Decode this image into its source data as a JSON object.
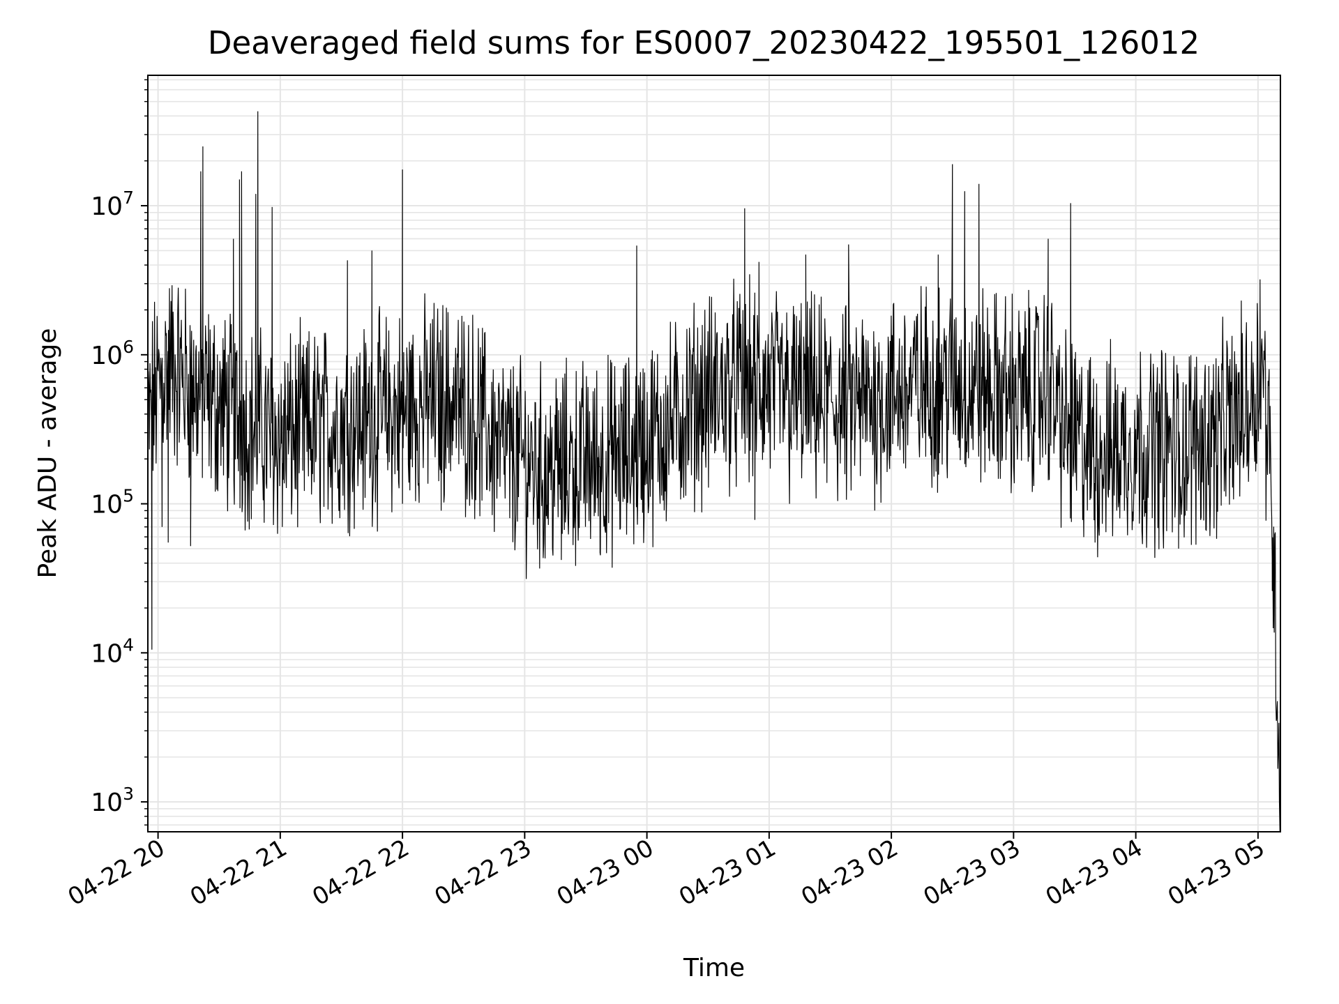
{
  "chart_data": {
    "type": "line",
    "title": "Deaveraged field sums for ES0007_20230422_195501_126012",
    "xlabel": "Time",
    "ylabel": "Peak ADU - average",
    "y_scale": "log",
    "ylim": [
      630,
      75000000
    ],
    "xlim": [
      "2023-04-22 19:55",
      "2023-04-23 05:11"
    ],
    "grid": "on (major and minor)",
    "legend": "none",
    "line_color": "#000000",
    "grid_color": "#e5e5e5",
    "x_ticks": [
      {
        "value": "2023-04-22 20:00",
        "label": "04-22 20"
      },
      {
        "value": "2023-04-22 21:00",
        "label": "04-22 21"
      },
      {
        "value": "2023-04-22 22:00",
        "label": "04-22 22"
      },
      {
        "value": "2023-04-22 23:00",
        "label": "04-22 23"
      },
      {
        "value": "2023-04-23 00:00",
        "label": "04-23 00"
      },
      {
        "value": "2023-04-23 01:00",
        "label": "04-23 01"
      },
      {
        "value": "2023-04-23 02:00",
        "label": "04-23 02"
      },
      {
        "value": "2023-04-23 03:00",
        "label": "04-23 03"
      },
      {
        "value": "2023-04-23 04:00",
        "label": "04-23 04"
      },
      {
        "value": "2023-04-23 05:00",
        "label": "04-23 05"
      }
    ],
    "y_ticks": [
      {
        "value": 1000,
        "base": "10",
        "exp": "3"
      },
      {
        "value": 10000,
        "base": "10",
        "exp": "4"
      },
      {
        "value": 100000,
        "base": "10",
        "exp": "5"
      },
      {
        "value": 1000000,
        "base": "10",
        "exp": "6"
      },
      {
        "value": 10000000,
        "base": "10",
        "exp": "7"
      }
    ],
    "series": [
      {
        "trend": [
          [
            "2023-04-22 19:55",
            300000
          ],
          [
            "2023-04-22 19:58",
            500000
          ],
          [
            "2023-04-22 20:05",
            900000
          ],
          [
            "2023-04-22 20:12",
            700000
          ],
          [
            "2023-04-22 20:20",
            550000
          ],
          [
            "2023-04-22 20:30",
            450000
          ],
          [
            "2023-04-22 20:45",
            330000
          ],
          [
            "2023-04-22 21:00",
            280000
          ],
          [
            "2023-04-22 21:20",
            330000
          ],
          [
            "2023-04-22 21:40",
            350000
          ],
          [
            "2023-04-22 22:00",
            420000
          ],
          [
            "2023-04-22 22:20",
            520000
          ],
          [
            "2023-04-22 22:35",
            400000
          ],
          [
            "2023-04-22 22:50",
            220000
          ],
          [
            "2023-04-22 23:10",
            170000
          ],
          [
            "2023-04-22 23:30",
            190000
          ],
          [
            "2023-04-22 23:50",
            210000
          ],
          [
            "2023-04-23 00:10",
            320000
          ],
          [
            "2023-04-23 00:25",
            500000
          ],
          [
            "2023-04-23 00:45",
            620000
          ],
          [
            "2023-04-23 01:00",
            580000
          ],
          [
            "2023-04-23 01:15",
            520000
          ],
          [
            "2023-04-23 01:35",
            450000
          ],
          [
            "2023-04-23 01:50",
            480000
          ],
          [
            "2023-04-23 02:10",
            600000
          ],
          [
            "2023-04-23 02:30",
            650000
          ],
          [
            "2023-04-23 02:50",
            560000
          ],
          [
            "2023-04-23 03:05",
            520000
          ],
          [
            "2023-04-23 03:18",
            620000
          ],
          [
            "2023-04-23 03:25",
            300000
          ],
          [
            "2023-04-23 03:40",
            220000
          ],
          [
            "2023-04-23 04:00",
            250000
          ],
          [
            "2023-04-23 04:20",
            240000
          ],
          [
            "2023-04-23 04:40",
            280000
          ],
          [
            "2023-04-23 04:57",
            500000
          ],
          [
            "2023-04-23 05:02",
            900000
          ],
          [
            "2023-04-23 05:05",
            300000
          ],
          [
            "2023-04-23 05:07",
            100000
          ],
          [
            "2023-04-23 05:09",
            10000
          ],
          [
            "2023-04-23 05:11",
            1000
          ]
        ],
        "peaks": [
          [
            "2023-04-22 19:57",
            10500
          ],
          [
            "2023-04-22 20:02",
            70000
          ],
          [
            "2023-04-22 20:05",
            55000
          ],
          [
            "2023-04-22 20:16",
            52000
          ],
          [
            "2023-04-22 20:21",
            17000000
          ],
          [
            "2023-04-22 20:22",
            25000000
          ],
          [
            "2023-04-22 20:37",
            6000000
          ],
          [
            "2023-04-22 20:40",
            15000000
          ],
          [
            "2023-04-22 20:41",
            17000000
          ],
          [
            "2023-04-22 20:48",
            12000000
          ],
          [
            "2023-04-22 20:49",
            43000000
          ],
          [
            "2023-04-22 20:56",
            9800000
          ],
          [
            "2023-04-22 21:01",
            70000
          ],
          [
            "2023-04-22 21:33",
            4300000
          ],
          [
            "2023-04-22 21:45",
            5000000
          ],
          [
            "2023-04-22 22:00",
            17500000
          ],
          [
            "2023-04-22 22:00",
            100000
          ],
          [
            "2023-04-22 22:19",
            90000
          ],
          [
            "2023-04-22 23:10",
            43000
          ],
          [
            "2023-04-22 23:18",
            42000
          ],
          [
            "2023-04-22 23:37",
            47000
          ],
          [
            "2023-04-22 23:55",
            5400000
          ],
          [
            "2023-04-23 00:48",
            9600000
          ],
          [
            "2023-04-23 00:53",
            78000
          ],
          [
            "2023-04-23 00:55",
            4200000
          ],
          [
            "2023-04-23 01:10",
            100000
          ],
          [
            "2023-04-23 01:18",
            4700000
          ],
          [
            "2023-04-23 01:39",
            5500000
          ],
          [
            "2023-04-23 02:23",
            4700000
          ],
          [
            "2023-04-23 02:30",
            19000000
          ],
          [
            "2023-04-23 02:36",
            12500000
          ],
          [
            "2023-04-23 02:43",
            14000000
          ],
          [
            "2023-04-23 03:17",
            6000000
          ],
          [
            "2023-04-23 03:28",
            10400000
          ],
          [
            "2023-04-23 03:40",
            55000
          ],
          [
            "2023-04-23 04:21",
            50000
          ],
          [
            "2023-04-23 05:01",
            3200000
          ],
          [
            "2023-04-23 05:07",
            26000
          ],
          [
            "2023-04-23 05:09",
            3500
          ],
          [
            "2023-04-23 05:11",
            1050
          ]
        ]
      }
    ]
  }
}
